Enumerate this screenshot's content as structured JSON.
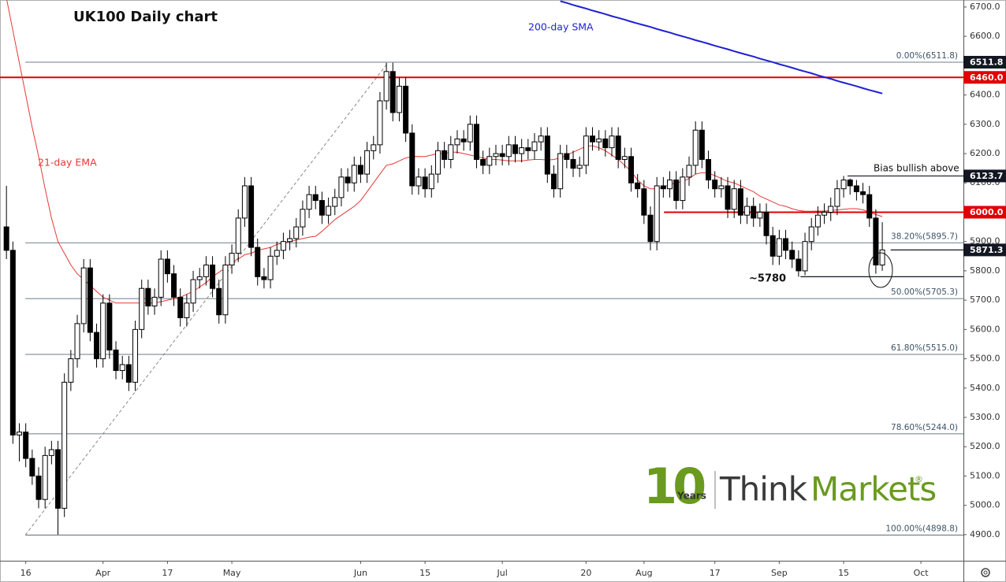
{
  "chart_data": {
    "type": "candlestick",
    "title": "UK100 Daily chart",
    "up_color": "#ffffff",
    "down_color": "#000000",
    "open": [
      5950,
      5870,
      5240,
      5250,
      5160,
      5100,
      5020,
      5170,
      5190,
      4990,
      5420,
      5500,
      5620,
      5810,
      5590,
      5500,
      5690,
      5530,
      5460,
      5480,
      5420,
      5600,
      5740,
      5680,
      5710,
      5840,
      5790,
      5710,
      5640,
      5690,
      5770,
      5780,
      5820,
      5740,
      5650,
      5820,
      5860,
      5980,
      6090,
      5880,
      5780,
      5770,
      5850,
      5870,
      5900,
      5910,
      5950,
      6010,
      6060,
      6040,
      5990,
      6020,
      6050,
      6120,
      6100,
      6160,
      6130,
      6210,
      6230,
      6380,
      6480,
      6340,
      6430,
      6270,
      6090,
      6120,
      6080,
      6130,
      6210,
      6180,
      6230,
      6250,
      6240,
      6300,
      6180,
      6160,
      6190,
      6200,
      6190,
      6230,
      6200,
      6220,
      6210,
      6240,
      6260,
      6130,
      6080,
      6200,
      6180,
      6150,
      6160,
      6260,
      6240,
      6250,
      6220,
      6260,
      6180,
      6190,
      6100,
      6080,
      5990,
      5900,
      6090,
      6080,
      6110,
      6040,
      6120,
      6160,
      6280,
      6180,
      6110,
      6080,
      6090,
      6010,
      6080,
      5990,
      6020,
      5980,
      6000,
      5920,
      5850,
      5910,
      5870,
      5840,
      5800,
      5900,
      5950,
      5990,
      6000,
      6020,
      6080,
      6110,
      6090,
      6070,
      6060,
      5980,
      5820
    ],
    "high": [
      6090,
      5900,
      5280,
      5280,
      5190,
      5130,
      5200,
      5220,
      5220,
      5450,
      5530,
      5650,
      5840,
      5840,
      5620,
      5720,
      5720,
      5560,
      5510,
      5510,
      5630,
      5770,
      5770,
      5740,
      5870,
      5870,
      5820,
      5740,
      5720,
      5800,
      5810,
      5850,
      5850,
      5770,
      5850,
      5890,
      6010,
      6120,
      6120,
      5910,
      5810,
      5880,
      5900,
      5930,
      5940,
      5980,
      6040,
      6090,
      6090,
      6070,
      6050,
      6080,
      6150,
      6150,
      6190,
      6190,
      6240,
      6260,
      6410,
      6510,
      6510,
      6460,
      6460,
      6300,
      6150,
      6150,
      6160,
      6240,
      6240,
      6260,
      6280,
      6280,
      6330,
      6330,
      6210,
      6220,
      6230,
      6230,
      6260,
      6260,
      6250,
      6250,
      6270,
      6290,
      6290,
      6160,
      6230,
      6230,
      6210,
      6190,
      6290,
      6290,
      6280,
      6280,
      6290,
      6290,
      6220,
      6220,
      6130,
      6110,
      6020,
      6120,
      6120,
      6140,
      6140,
      6150,
      6190,
      6310,
      6310,
      6210,
      6140,
      6120,
      6120,
      6110,
      6110,
      6050,
      6050,
      6030,
      6030,
      5950,
      5940,
      5940,
      5900,
      5870,
      5930,
      5980,
      6020,
      6030,
      6050,
      6110,
      6123.7,
      6115,
      6110,
      6100,
      6090,
      6010,
      5966
    ],
    "low": [
      5840,
      5210,
      5150,
      5130,
      5070,
      4990,
      4990,
      5140,
      4900,
      4960,
      5390,
      5470,
      5590,
      5560,
      5470,
      5470,
      5500,
      5430,
      5430,
      5390,
      5390,
      5570,
      5650,
      5650,
      5680,
      5760,
      5680,
      5610,
      5610,
      5660,
      5740,
      5750,
      5710,
      5620,
      5620,
      5790,
      5830,
      5950,
      5850,
      5750,
      5740,
      5740,
      5820,
      5840,
      5870,
      5880,
      5920,
      5980,
      6010,
      5960,
      5960,
      5990,
      6020,
      6070,
      6070,
      6100,
      6100,
      6180,
      6200,
      6350,
      6310,
      6310,
      6240,
      6060,
      6060,
      6050,
      6050,
      6100,
      6150,
      6150,
      6200,
      6210,
      6210,
      6150,
      6130,
      6130,
      6160,
      6160,
      6160,
      6170,
      6170,
      6180,
      6180,
      6210,
      6100,
      6050,
      6050,
      6150,
      6120,
      6120,
      6130,
      6210,
      6210,
      6190,
      6190,
      6150,
      6150,
      6070,
      6050,
      5960,
      5870,
      5870,
      6050,
      6050,
      6010,
      6010,
      6090,
      6130,
      6150,
      6080,
      6050,
      6050,
      5980,
      5980,
      5960,
      5960,
      5950,
      5950,
      5890,
      5820,
      5820,
      5840,
      5810,
      5780,
      5785,
      5870,
      5920,
      5960,
      5970,
      5990,
      6050,
      6060,
      6040,
      6030,
      5950,
      5790,
      5800
    ],
    "close": [
      5870,
      5240,
      5250,
      5160,
      5100,
      5020,
      5170,
      5190,
      4990,
      5420,
      5500,
      5620,
      5810,
      5590,
      5500,
      5690,
      5530,
      5460,
      5480,
      5420,
      5600,
      5740,
      5680,
      5710,
      5840,
      5790,
      5710,
      5640,
      5690,
      5770,
      5780,
      5820,
      5740,
      5650,
      5820,
      5860,
      5980,
      6090,
      5880,
      5780,
      5770,
      5850,
      5870,
      5900,
      5910,
      5950,
      6010,
      6060,
      6040,
      5990,
      6020,
      6050,
      6120,
      6100,
      6160,
      6130,
      6210,
      6230,
      6380,
      6480,
      6340,
      6430,
      6270,
      6090,
      6120,
      6080,
      6130,
      6210,
      6180,
      6230,
      6250,
      6240,
      6300,
      6180,
      6160,
      6190,
      6200,
      6190,
      6230,
      6200,
      6220,
      6210,
      6240,
      6260,
      6130,
      6080,
      6200,
      6180,
      6150,
      6160,
      6260,
      6240,
      6250,
      6220,
      6260,
      6180,
      6190,
      6100,
      6080,
      5990,
      5900,
      6090,
      6080,
      6110,
      6040,
      6120,
      6160,
      6280,
      6180,
      6110,
      6080,
      6090,
      6010,
      6080,
      5990,
      6020,
      5980,
      6000,
      5920,
      5850,
      5910,
      5870,
      5840,
      5800,
      5900,
      5950,
      5990,
      6000,
      6020,
      6080,
      6110,
      6090,
      6070,
      6060,
      5980,
      5820,
      5871.3
    ],
    "series": [
      {
        "name": "21-day EMA",
        "color": "#e53935",
        "values": [
          6730,
          6620,
          6510,
          6400,
          6290,
          6190,
          6080,
          5980,
          5900,
          5860,
          5820,
          5790,
          5770,
          5750,
          5730,
          5710,
          5700,
          5690,
          5690,
          5690,
          5690,
          5690,
          5690,
          5690,
          5695,
          5700,
          5705,
          5710,
          5720,
          5730,
          5745,
          5760,
          5780,
          5795,
          5810,
          5830,
          5840,
          5855,
          5860,
          5870,
          5875,
          5880,
          5890,
          5895,
          5900,
          5905,
          5910,
          5915,
          5918,
          5935,
          5955,
          5975,
          5990,
          6005,
          6020,
          6040,
          6070,
          6100,
          6130,
          6160,
          6165,
          6175,
          6185,
          6190,
          6190,
          6190,
          6195,
          6200,
          6200,
          6205,
          6205,
          6200,
          6195,
          6190,
          6185,
          6180,
          6180,
          6178,
          6175,
          6175,
          6175,
          6178,
          6180,
          6180,
          6178,
          6180,
          6185,
          6195,
          6205,
          6215,
          6225,
          6227,
          6220,
          6210,
          6195,
          6180,
          6160,
          6140,
          6110,
          6090,
          6080,
          6080,
          6085,
          6095,
          6100,
          6105,
          6115,
          6130,
          6135,
          6133,
          6125,
          6115,
          6105,
          6100,
          6090,
          6080,
          6070,
          6055,
          6045,
          6035,
          6025,
          6020,
          6012,
          6006,
          6003,
          6003,
          6004,
          6004,
          6006,
          6008,
          6010,
          6012,
          6012,
          6008,
          6000,
          5992,
          5985
        ]
      },
      {
        "name": "200-day SMA",
        "color": "#1f1fd6",
        "values": [
          null,
          null,
          null,
          null,
          null,
          null,
          null,
          null,
          null,
          null,
          null,
          null,
          null,
          null,
          null,
          null,
          null,
          null,
          null,
          null,
          null,
          null,
          null,
          null,
          null,
          null,
          null,
          null,
          null,
          null,
          null,
          null,
          null,
          null,
          null,
          null,
          null,
          null,
          null,
          null,
          null,
          null,
          null,
          null,
          null,
          null,
          null,
          null,
          null,
          null,
          null,
          null,
          null,
          null,
          null,
          null,
          null,
          null,
          null,
          null,
          null,
          null,
          null,
          null,
          null,
          null,
          null,
          null,
          null,
          null,
          null,
          null,
          null,
          null,
          null,
          null,
          null,
          null,
          null,
          null,
          null,
          null,
          null,
          null,
          null,
          null,
          6720,
          6714,
          6707,
          6701,
          6695,
          6688,
          6682,
          6676,
          6669,
          6663,
          6657,
          6650,
          6644,
          6638,
          6632,
          6625,
          6619,
          6613,
          6606,
          6600,
          6594,
          6587,
          6581,
          6575,
          6568,
          6562,
          6556,
          6549,
          6543,
          6537,
          6531,
          6524,
          6518,
          6512,
          6505,
          6499,
          6493,
          6486,
          6480,
          6474,
          6467,
          6461,
          6455,
          6448,
          6442,
          6436,
          6430,
          6423,
          6417,
          6411,
          6405
        ]
      }
    ],
    "xlim": [
      -1,
      148.6
    ],
    "xticks": [
      {
        "value": 3,
        "label": "16"
      },
      {
        "value": 15,
        "label": "Apr"
      },
      {
        "value": 25,
        "label": "17"
      },
      {
        "value": 35,
        "label": "May"
      },
      {
        "value": 55,
        "label": "Jun"
      },
      {
        "value": 65,
        "label": "15"
      },
      {
        "value": 77,
        "label": "Jul"
      },
      {
        "value": 90,
        "label": "20"
      },
      {
        "value": 99,
        "label": "Aug"
      },
      {
        "value": 110,
        "label": "17"
      },
      {
        "value": 120,
        "label": "Sep"
      },
      {
        "value": 130,
        "label": "15"
      },
      {
        "value": 142,
        "label": "Oct"
      }
    ],
    "ylim": [
      4811,
      6724
    ],
    "yticks": [
      {
        "value": 6700,
        "label": "6700.0"
      },
      {
        "value": 6600,
        "label": "6600.0"
      },
      {
        "value": 6500,
        "label": "6500.0"
      },
      {
        "value": 6400,
        "label": "6400.0"
      },
      {
        "value": 6300,
        "label": "6300.0"
      },
      {
        "value": 6200,
        "label": "6200.0"
      },
      {
        "value": 6100,
        "label": "6100.0"
      },
      {
        "value": 6000,
        "label": "6000.0"
      },
      {
        "value": 5900,
        "label": "5900.0"
      },
      {
        "value": 5800,
        "label": "5800.0"
      },
      {
        "value": 5700,
        "label": "5700.0"
      },
      {
        "value": 5600,
        "label": "5600.0"
      },
      {
        "value": 5500,
        "label": "5500.0"
      },
      {
        "value": 5400,
        "label": "5400.0"
      },
      {
        "value": 5300,
        "label": "5300.0"
      },
      {
        "value": 5200,
        "label": "5200.0"
      },
      {
        "value": 5100,
        "label": "5100.0"
      },
      {
        "value": 5000,
        "label": "5000.0"
      },
      {
        "value": 4900,
        "label": "4900.0"
      }
    ],
    "fib_levels": [
      {
        "value": 6511.8,
        "label": "0.00%(6511.8)"
      },
      {
        "value": 5895.7,
        "label": "38.20%(5895.7)"
      },
      {
        "value": 5705.3,
        "label": "50.00%(5705.3)"
      },
      {
        "value": 5515.0,
        "label": "61.80%(5515.0)"
      },
      {
        "value": 5244.0,
        "label": "78.60%(5244.0)"
      },
      {
        "value": 4898.8,
        "label": "100.00%(4898.8)"
      }
    ],
    "levels": [
      {
        "value": 6511.8,
        "label": "6511.8",
        "color": "#131722"
      },
      {
        "value": 6460.0,
        "label": "6460.0",
        "color": "#e00000"
      },
      {
        "value": 6123.7,
        "label": "6123.7",
        "color": "#131722"
      },
      {
        "value": 6000.0,
        "label": "6000.0",
        "color": "#e00000"
      },
      {
        "value": 5871.3,
        "label": "5871.3",
        "color": "#131722"
      }
    ],
    "support": {
      "value": 5780,
      "label": "~5780"
    },
    "bias_note": "Bias bullish above",
    "watermark": {
      "mark": "10",
      "years": "Years",
      "brand_a": "Think",
      "brand_b": "Markets",
      "registered": "®"
    }
  }
}
